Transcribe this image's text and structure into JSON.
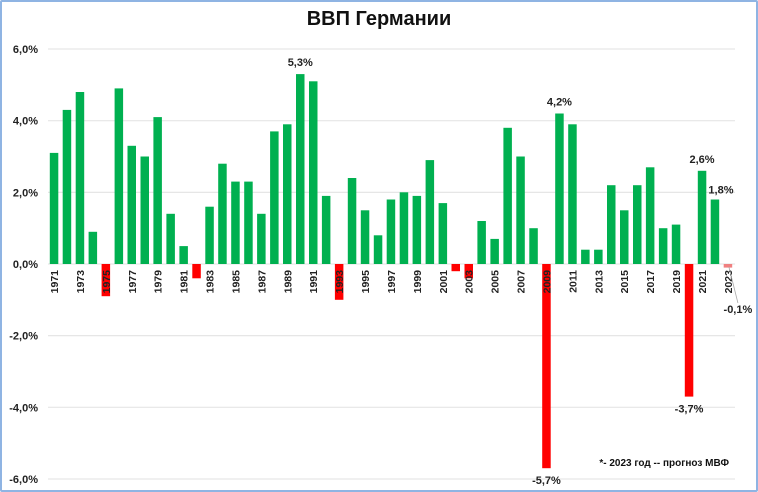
{
  "chart_data": {
    "type": "bar",
    "title": "ВВП Германии",
    "xlabel": "",
    "ylabel": "",
    "ylim": [
      -6.0,
      6.0
    ],
    "yticks": [
      "6,0%",
      "4,0%",
      "2,0%",
      "0,0%",
      "-2,0%",
      "-4,0%",
      "-6,0%"
    ],
    "ytick_values": [
      6,
      4,
      2,
      0,
      -2,
      -4,
      -6
    ],
    "grid": true,
    "legend": null,
    "categories": [
      "1971",
      "1972",
      "1973",
      "1974",
      "1975",
      "1976",
      "1977",
      "1978",
      "1979",
      "1980",
      "1981",
      "1982",
      "1983",
      "1984",
      "1985",
      "1986",
      "1987",
      "1988",
      "1989",
      "1990",
      "1991",
      "1992",
      "1993",
      "1994",
      "1995",
      "1996",
      "1997",
      "1998",
      "1999",
      "2000",
      "2001",
      "2002",
      "2003",
      "2004",
      "2005",
      "2006",
      "2007",
      "2008",
      "2009",
      "2010",
      "2011",
      "2012",
      "2013",
      "2014",
      "2015",
      "2016",
      "2017",
      "2018",
      "2019",
      "2020",
      "2021",
      "2022",
      "2023"
    ],
    "x_tick_labels_shown": [
      "1971",
      "1973",
      "1975",
      "1977",
      "1979",
      "1981",
      "1983",
      "1985",
      "1987",
      "1989",
      "1991",
      "1993",
      "1995",
      "1997",
      "1999",
      "2001",
      "2003",
      "2005",
      "2007",
      "2009",
      "2011",
      "2013",
      "2015",
      "2017",
      "2019",
      "2021",
      "2023"
    ],
    "values": [
      3.1,
      4.3,
      4.8,
      0.9,
      -0.9,
      4.9,
      3.3,
      3.0,
      4.1,
      1.4,
      0.5,
      -0.4,
      1.6,
      2.8,
      2.3,
      2.3,
      1.4,
      3.7,
      3.9,
      5.3,
      5.1,
      1.9,
      -1.0,
      2.4,
      1.5,
      0.8,
      1.8,
      2.0,
      1.9,
      2.9,
      1.7,
      -0.2,
      -0.4,
      1.2,
      0.7,
      3.8,
      3.0,
      1.0,
      -5.7,
      4.2,
      3.9,
      0.4,
      0.4,
      2.2,
      1.5,
      2.2,
      2.7,
      1.0,
      1.1,
      -3.7,
      2.6,
      1.8,
      -0.1
    ],
    "colors": {
      "positive": "#00b050",
      "negative": "#ff0000",
      "forecast_negative": "#f08080",
      "gridline": "#e6e6e6",
      "frame": "#8fb4e3"
    },
    "forecast_years": [
      "2023"
    ],
    "annotations": [
      {
        "year": "1990",
        "text": "5,3%"
      },
      {
        "year": "2009",
        "text": "-5,7%"
      },
      {
        "year": "2010",
        "text": "4,2%"
      },
      {
        "year": "2020",
        "text": "-3,7%"
      },
      {
        "year": "2021",
        "text": "2,6%"
      },
      {
        "year": "2022",
        "text": "1,8%"
      },
      {
        "year": "2023",
        "text": "-0,1%"
      }
    ],
    "footnote": "*- 2023 год -- прогноз МВФ"
  }
}
